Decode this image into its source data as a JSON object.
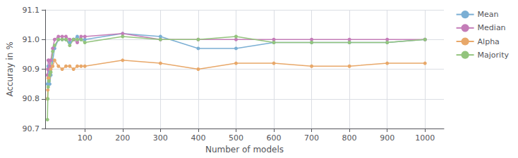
{
  "chart_data": {
    "type": "line",
    "xlabel": "Number of models",
    "ylabel": "Accuray in %",
    "x": [
      1,
      2,
      3,
      5,
      7,
      10,
      15,
      20,
      30,
      40,
      50,
      60,
      70,
      80,
      90,
      100,
      200,
      300,
      400,
      500,
      600,
      700,
      800,
      900,
      1000
    ],
    "series": [
      {
        "name": "Mean",
        "color": "#7bafd4",
        "marker": "circle",
        "values": [
          90.85,
          90.88,
          90.91,
          90.9,
          90.85,
          90.88,
          90.93,
          90.97,
          91.0,
          91.0,
          91.0,
          90.99,
          91.0,
          91.01,
          91.0,
          91.0,
          91.02,
          91.01,
          90.97,
          90.97,
          90.99,
          90.99,
          90.99,
          90.99,
          91.0
        ]
      },
      {
        "name": "Median",
        "color": "#c47db8",
        "marker": "circle",
        "values": [
          90.88,
          90.9,
          90.93,
          90.93,
          90.91,
          90.93,
          90.97,
          91.0,
          91.01,
          91.01,
          91.01,
          91.0,
          91.0,
          90.99,
          91.01,
          91.01,
          91.02,
          91.0,
          91.0,
          91.0,
          91.0,
          91.0,
          91.0,
          91.0,
          91.0
        ]
      },
      {
        "name": "Alpha",
        "color": "#e8a86a",
        "marker": "circle",
        "values": [
          90.8,
          90.83,
          90.87,
          90.87,
          90.88,
          90.9,
          90.91,
          90.93,
          90.91,
          90.9,
          90.91,
          90.91,
          90.9,
          90.91,
          90.91,
          90.91,
          90.93,
          90.92,
          90.9,
          90.92,
          90.92,
          90.91,
          90.91,
          90.92,
          90.92
        ]
      },
      {
        "name": "Majority",
        "color": "#93c47d",
        "marker": "circle",
        "values": [
          90.73,
          90.8,
          90.84,
          90.86,
          90.88,
          90.89,
          90.96,
          90.98,
          91.0,
          91.0,
          91.0,
          90.98,
          91.0,
          91.0,
          91.0,
          90.99,
          91.01,
          91.0,
          91.0,
          91.01,
          90.99,
          90.99,
          90.99,
          90.99,
          91.0
        ]
      }
    ],
    "xlim": [
      -5,
      1050
    ],
    "xticks": [
      100,
      200,
      300,
      400,
      500,
      600,
      700,
      800,
      900,
      1000
    ],
    "ylim": [
      90.7,
      91.1
    ],
    "yticks": [
      90.7,
      90.8,
      90.9,
      {
        "value": 91,
        "label": "91.0"
      },
      91.1
    ],
    "grid": true,
    "legend": "right"
  }
}
